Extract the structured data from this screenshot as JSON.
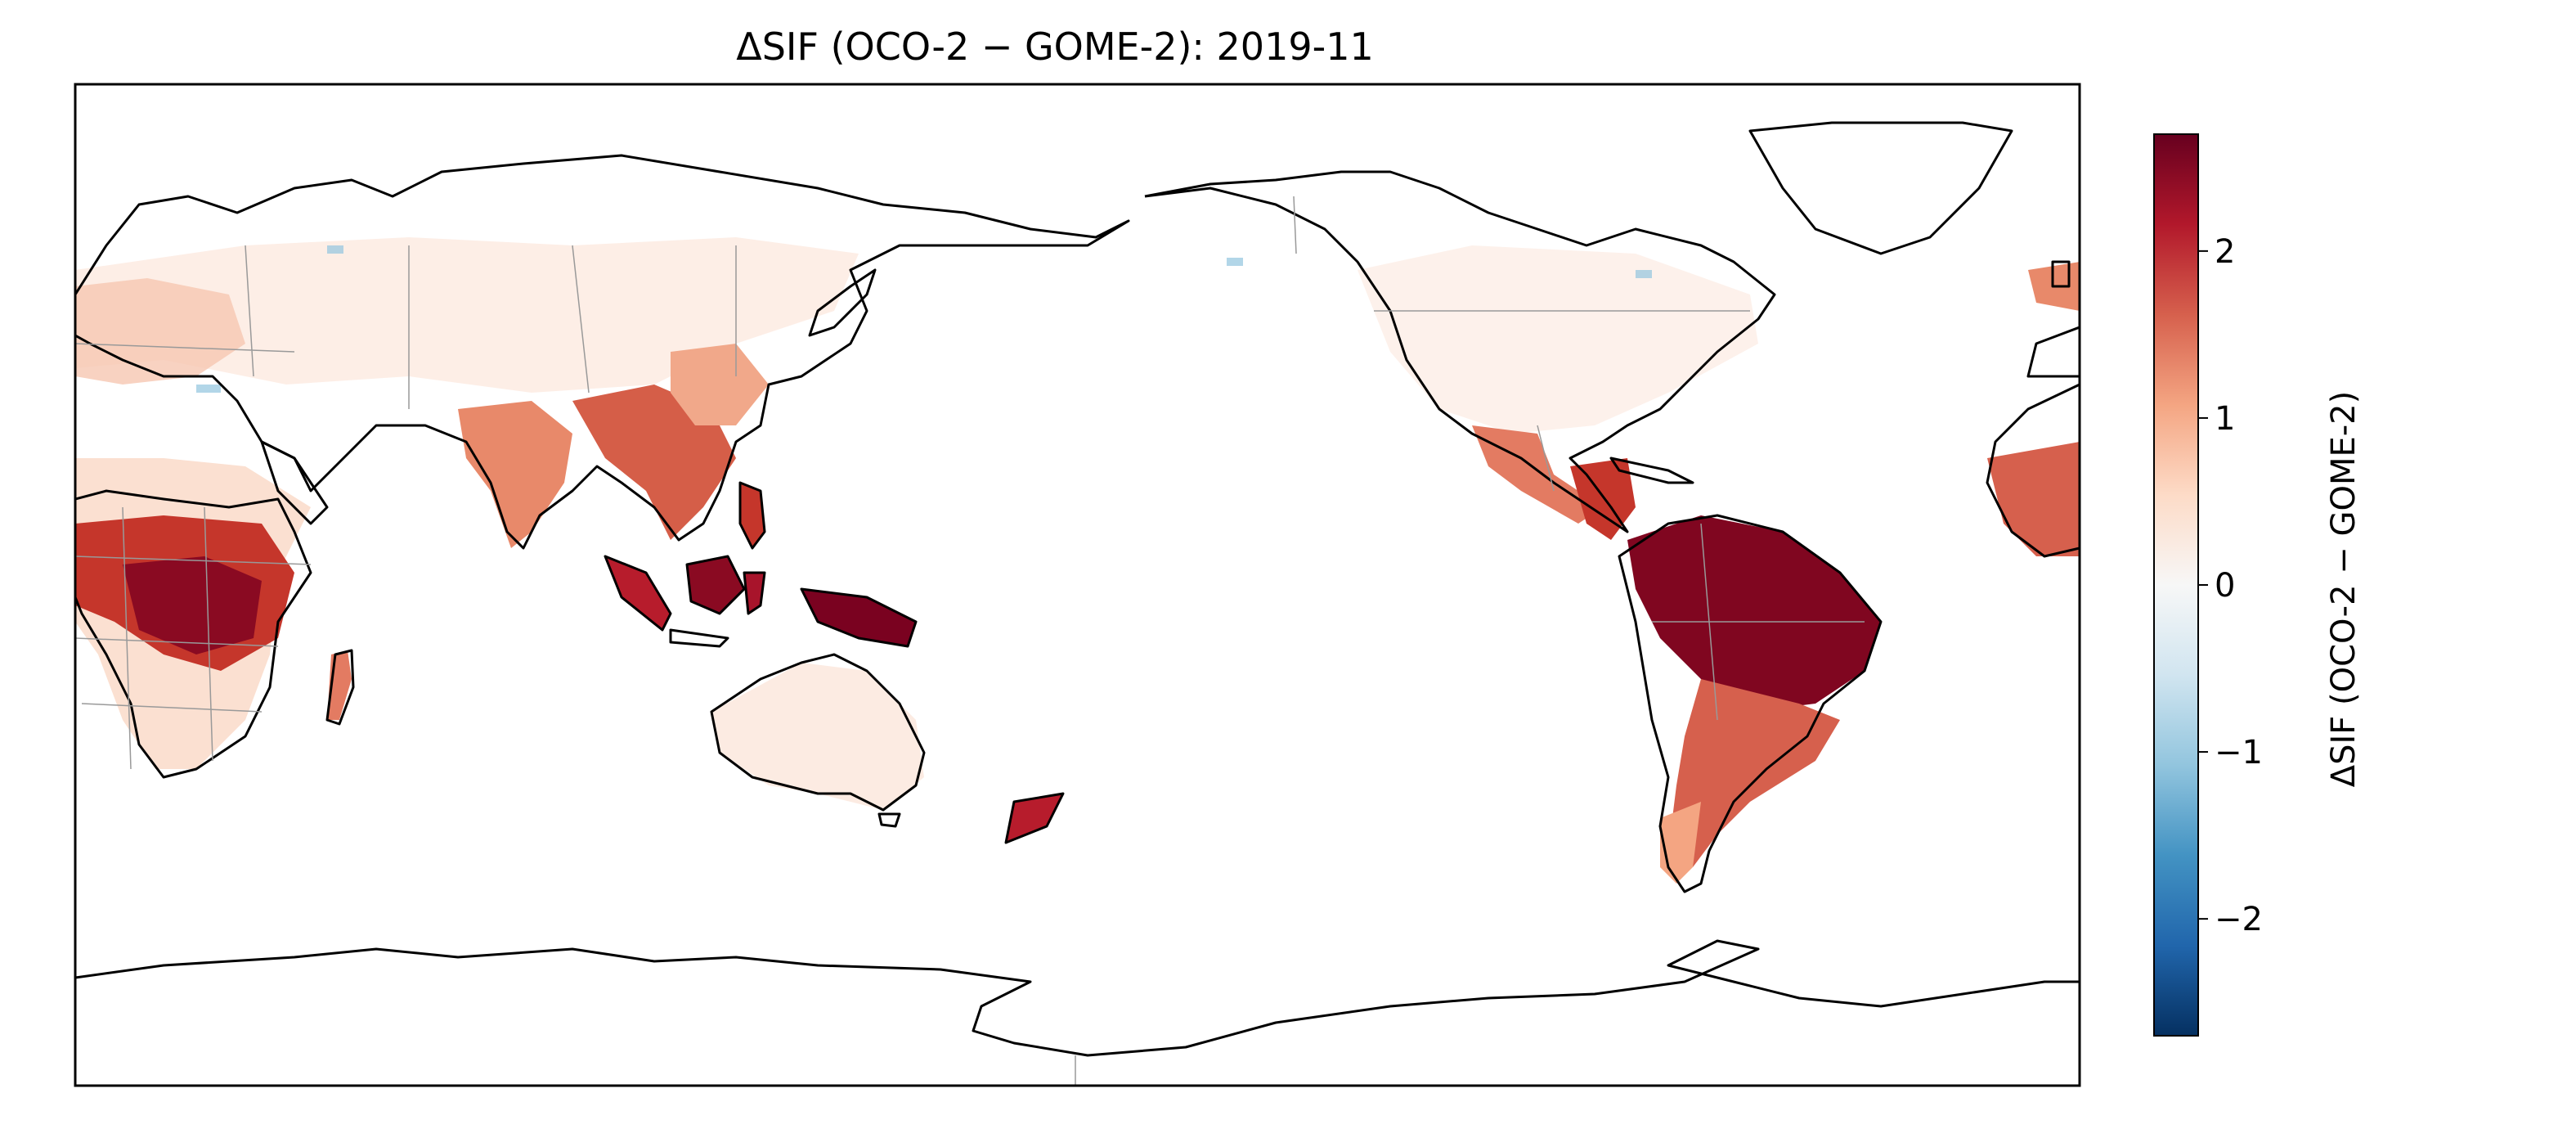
{
  "title": "ΔSIF (OCO-2 − GOME-2): 2019-11",
  "colorbar": {
    "label": "ΔSIF (OCO-2 − GOME-2)",
    "colormap": "RdBu_r",
    "range": [
      -2.7,
      2.7
    ],
    "ticks": [
      {
        "value": 2,
        "label": "2"
      },
      {
        "value": 1,
        "label": "1"
      },
      {
        "value": 0,
        "label": "0"
      },
      {
        "value": -1,
        "label": "−1"
      },
      {
        "value": -2,
        "label": "−2"
      }
    ],
    "colors": [
      "#053061",
      "#2166ac",
      "#4393c3",
      "#92c5de",
      "#d1e5f0",
      "#f7f7f7",
      "#fddbc7",
      "#f4a582",
      "#d6604d",
      "#b2182b",
      "#67001f"
    ]
  },
  "map": {
    "projection": "PlateCarree",
    "central_longitude": 180,
    "land_fill": "#ffffff",
    "coastline_color": "#000000",
    "border_color": "#999999"
  }
}
